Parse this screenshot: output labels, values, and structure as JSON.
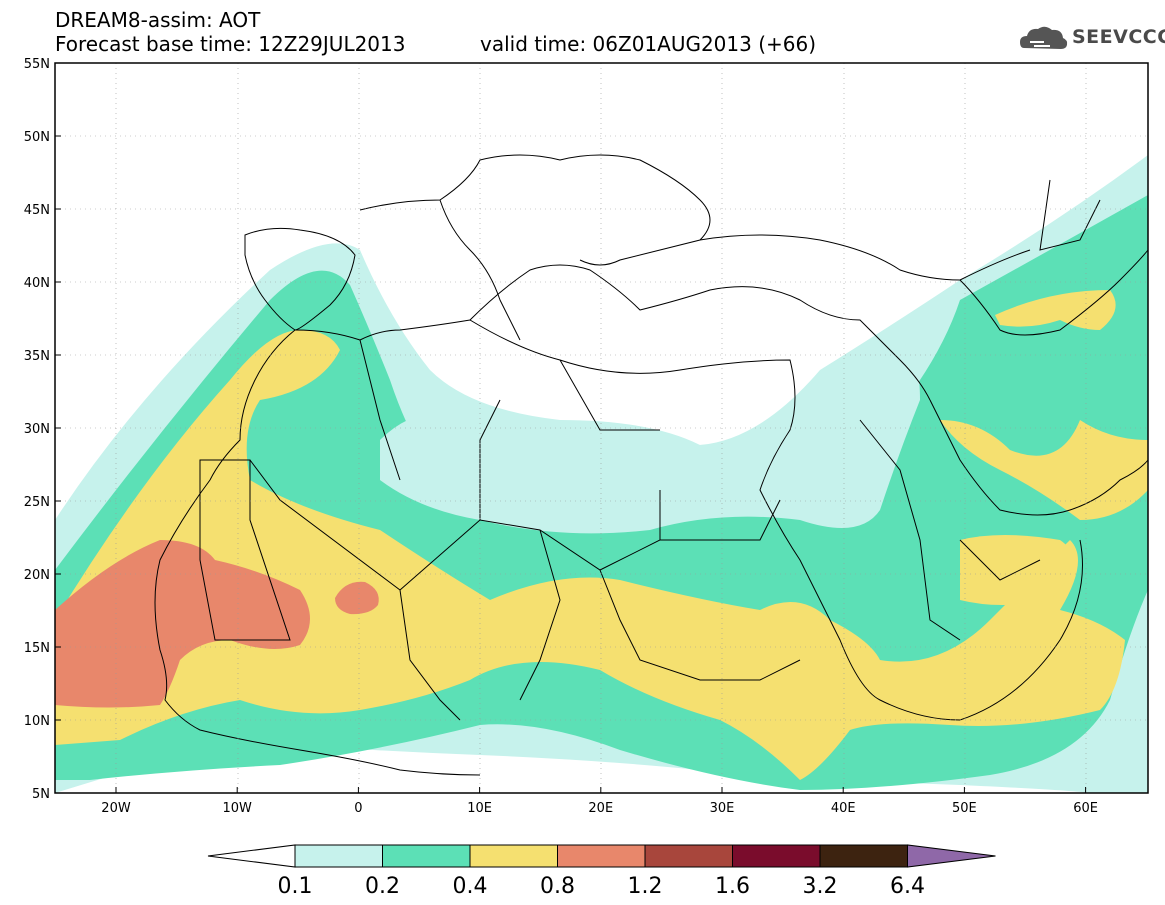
{
  "header": {
    "line1": "DREAM8-assim: AOT",
    "line2": "Forecast base time: 12Z29JUL2013",
    "valid": "valid time: 06Z01AUG2013 (+66)"
  },
  "logo": {
    "text": "SEEVCCC",
    "icon": "cloud-icon",
    "color": "#555555"
  },
  "axes": {
    "lat_labels": [
      "55N",
      "50N",
      "45N",
      "40N",
      "35N",
      "30N",
      "25N",
      "20N",
      "15N",
      "10N",
      "5N"
    ],
    "lon_labels": [
      "20W",
      "10W",
      "0",
      "10E",
      "20E",
      "30E",
      "40E",
      "50E",
      "60E"
    ]
  },
  "colorbar": {
    "labels": [
      "0.1",
      "0.2",
      "0.4",
      "0.8",
      "1.2",
      "1.6",
      "3.2",
      "6.4"
    ],
    "colors": [
      "#ffffff",
      "#c6f2ec",
      "#5ce0b6",
      "#f5e070",
      "#e8876b",
      "#a8463c",
      "#7a0c2c",
      "#3d2310",
      "#8f68a8"
    ]
  },
  "map_colors": {
    "ocean_land": "#ffffff",
    "c1": "#c6f2ec",
    "c2": "#5ce0b6",
    "c3": "#f5e070",
    "c4": "#e8876b"
  }
}
